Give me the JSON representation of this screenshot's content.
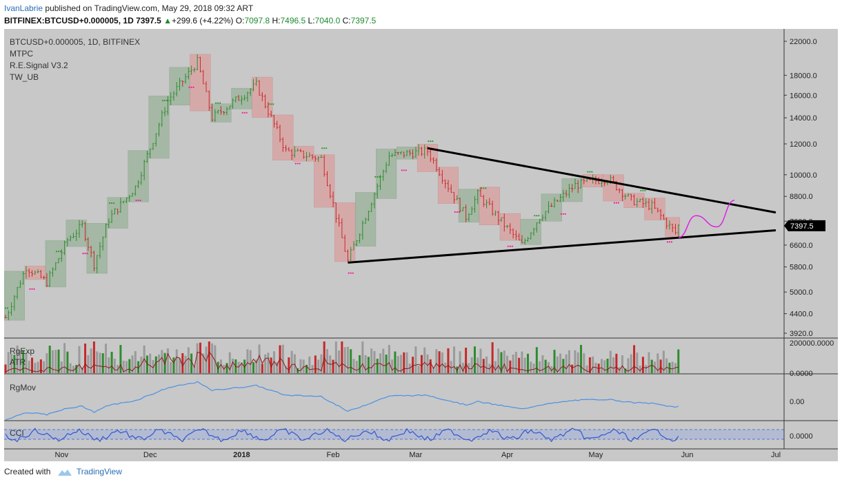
{
  "header": {
    "author": "IvanLabrie",
    "published_text": "published on TradingView.com, May 29, 2018 09:32 ART",
    "symbol": "BITFINEX:BTCUSD+0.000005, 1D",
    "last": "7397.5",
    "change": "+299.6 (+4.22%)",
    "change_arrow": "▲",
    "open_label": "O:",
    "open": "7097.8",
    "high_label": "H:",
    "high": "7496.5",
    "low_label": "L:",
    "low": "7040.0",
    "close_label": "C:",
    "close": "7397.5"
  },
  "chart_legend": {
    "title": "BTCUSD+0.000005, 1D, BITFINEX",
    "indicators": [
      "MTPC",
      "R.E.Signal V3.2",
      "TW_UB"
    ]
  },
  "panes": {
    "volume": {
      "labels": [
        "RgExp",
        "ATR"
      ],
      "axis_labels": [
        "200000.0000",
        "0.0000"
      ]
    },
    "rgmov": {
      "label": "RgMov",
      "axis_label": "0.00"
    },
    "cci": {
      "label": "CCI",
      "axis_label": "0.0000"
    }
  },
  "footer": {
    "created_with": "Created with",
    "brand": "TradingView"
  },
  "colors": {
    "bg": "#c8c8c8",
    "bull": "#2e8b2e",
    "bear": "#c62828",
    "bull_box": "#9fb59f",
    "bear_box": "#d9a4a4",
    "trendline": "#000000",
    "projection": "#e020e0",
    "rgmov_line": "#4a90e2",
    "cci_line": "#3355cc",
    "atr_line": "#8b1a1a"
  },
  "chart_data": {
    "type": "candlestick",
    "title": "BTCUSD+0.000005, 1D, BITFINEX",
    "y_scale": "log",
    "y_ticks": [
      22000.0,
      18000.0,
      16000.0,
      14000.0,
      12000.0,
      10000.0,
      8800.0,
      7600.0,
      6600.0,
      5800.0,
      5000.0,
      4400.0,
      3920.0
    ],
    "x_ticks": [
      "Nov",
      "Dec",
      "2018",
      "Feb",
      "Mar",
      "Apr",
      "May",
      "Jun",
      "Jul"
    ],
    "last_price_label": 7397.5,
    "price_path": [
      {
        "date": "2017-10-13",
        "price": 4300
      },
      {
        "date": "2017-10-20",
        "price": 5800
      },
      {
        "date": "2017-10-27",
        "price": 5300
      },
      {
        "date": "2017-11-03",
        "price": 6800
      },
      {
        "date": "2017-11-08",
        "price": 7400
      },
      {
        "date": "2017-11-12",
        "price": 5900
      },
      {
        "date": "2017-11-17",
        "price": 7700
      },
      {
        "date": "2017-11-26",
        "price": 9300
      },
      {
        "date": "2017-12-07",
        "price": 15500
      },
      {
        "date": "2017-12-17",
        "price": 19500
      },
      {
        "date": "2017-12-22",
        "price": 14000
      },
      {
        "date": "2018-01-06",
        "price": 17000
      },
      {
        "date": "2018-01-16",
        "price": 11500
      },
      {
        "date": "2018-01-28",
        "price": 11000
      },
      {
        "date": "2018-02-06",
        "price": 6000
      },
      {
        "date": "2018-02-20",
        "price": 11200
      },
      {
        "date": "2018-03-05",
        "price": 11500
      },
      {
        "date": "2018-03-18",
        "price": 7800
      },
      {
        "date": "2018-03-22",
        "price": 8900
      },
      {
        "date": "2018-04-06",
        "price": 6600
      },
      {
        "date": "2018-04-12",
        "price": 7800
      },
      {
        "date": "2018-04-24",
        "price": 9400
      },
      {
        "date": "2018-05-05",
        "price": 9800
      },
      {
        "date": "2018-05-13",
        "price": 8600
      },
      {
        "date": "2018-05-20",
        "price": 8300
      },
      {
        "date": "2018-05-28",
        "price": 7100
      },
      {
        "date": "2018-05-29",
        "price": 7397.5
      }
    ],
    "trendlines": [
      {
        "name": "upper",
        "points": [
          {
            "date": "2018-03-05",
            "price": 11700
          },
          {
            "date": "2018-07-01",
            "price": 8000
          }
        ]
      },
      {
        "name": "lower",
        "points": [
          {
            "date": "2018-02-06",
            "price": 5950
          },
          {
            "date": "2018-07-01",
            "price": 7200
          }
        ]
      }
    ],
    "projection": [
      {
        "date": "2018-05-29",
        "price": 6900
      },
      {
        "date": "2018-06-04",
        "price": 7850
      },
      {
        "date": "2018-06-11",
        "price": 7350
      },
      {
        "date": "2018-06-17",
        "price": 8600
      }
    ]
  }
}
